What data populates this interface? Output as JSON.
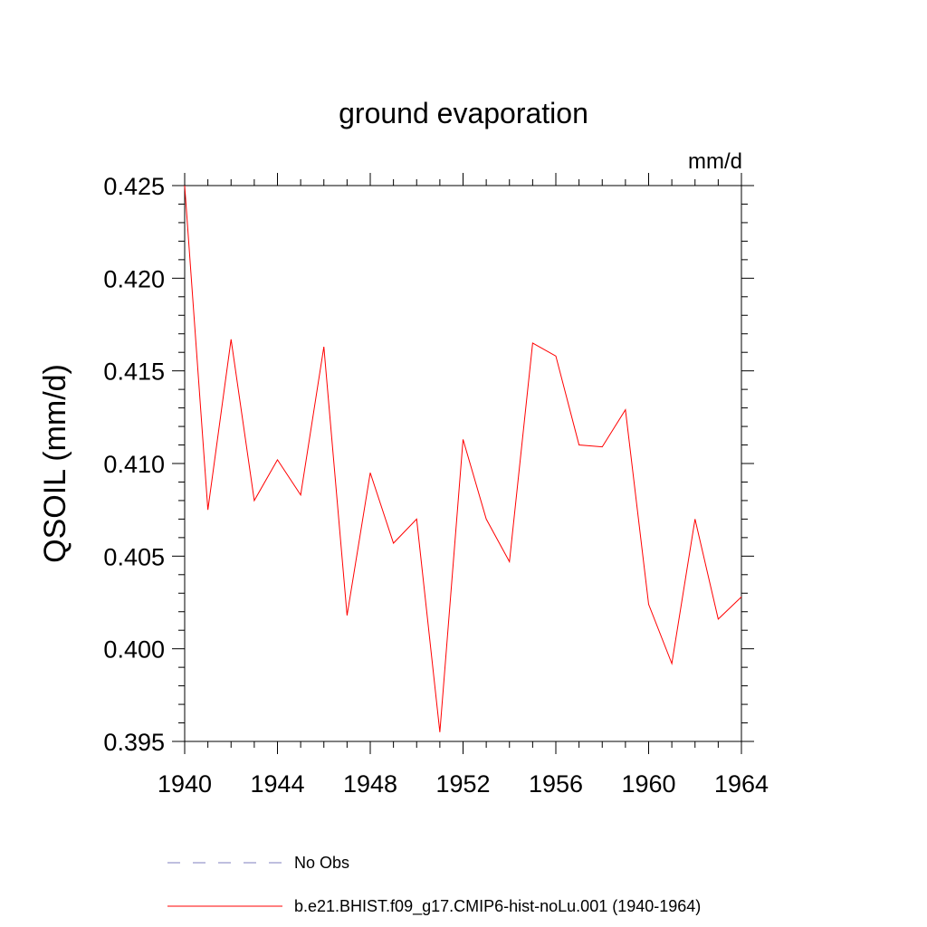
{
  "chart_data": {
    "type": "line",
    "title": "ground evaporation",
    "units": "mm/d",
    "xlabel": "",
    "ylabel": "QSOIL  (mm/d)",
    "xlim": [
      1940,
      1964
    ],
    "ylim": [
      0.395,
      0.425
    ],
    "xticks": [
      "1940",
      "1944",
      "1948",
      "1952",
      "1956",
      "1960",
      "1964"
    ],
    "yticks": [
      "0.425",
      "0.420",
      "0.415",
      "0.410",
      "0.405",
      "0.400",
      "0.395"
    ],
    "grid": false,
    "legend_position": "bottom",
    "x": [
      1940,
      1941,
      1942,
      1943,
      1944,
      1945,
      1946,
      1947,
      1948,
      1949,
      1950,
      1951,
      1952,
      1953,
      1954,
      1955,
      1956,
      1957,
      1958,
      1959,
      1960,
      1961,
      1962,
      1963,
      1964
    ],
    "series": [
      {
        "name": "b.e21.BHIST.f09_g17.CMIP6-hist-noLu.001 (1940-1964)",
        "color": "#ff0000",
        "style": "solid",
        "values": [
          0.425,
          0.4075,
          0.4167,
          0.408,
          0.4102,
          0.4083,
          0.4163,
          0.4018,
          0.4095,
          0.4057,
          0.407,
          0.3955,
          0.4113,
          0.407,
          0.4047,
          0.4165,
          0.4158,
          0.411,
          0.4109,
          0.4129,
          0.4024,
          0.3992,
          0.407,
          0.4016,
          0.4028
        ]
      }
    ],
    "legend": [
      {
        "label": "No Obs",
        "color": "#7f7fbf",
        "style": "dashed"
      },
      {
        "label": "b.e21.BHIST.f09_g17.CMIP6-hist-noLu.001 (1940-1964)",
        "color": "#ff0000",
        "style": "solid"
      }
    ]
  }
}
